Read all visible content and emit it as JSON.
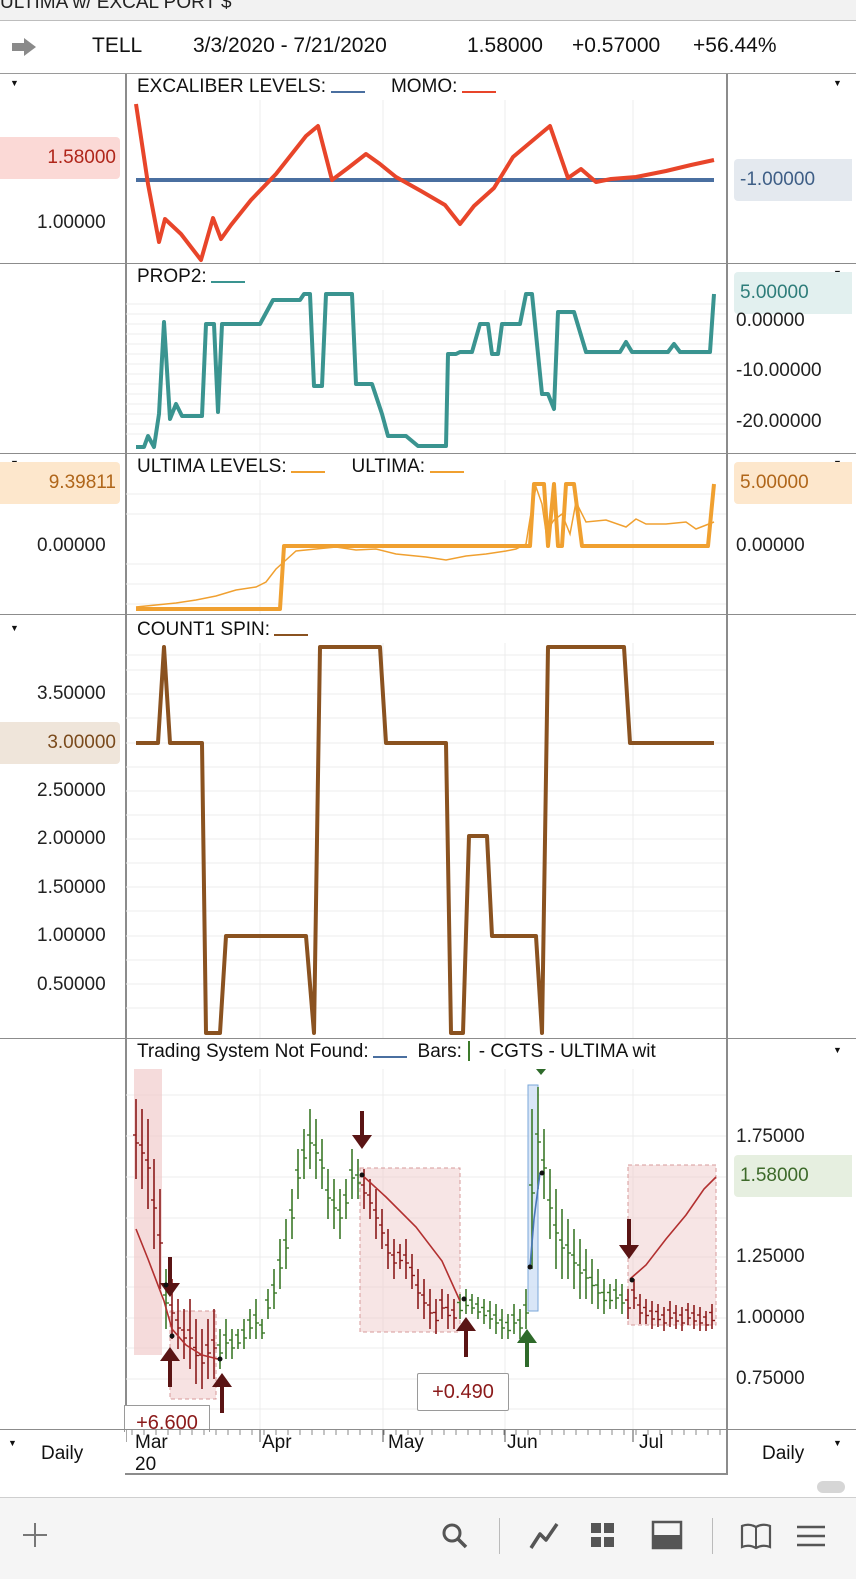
{
  "window": {
    "title_fragment": "ULTIMA w/ EXCAL PORT $"
  },
  "header": {
    "symbol": "TELL",
    "date_range": "3/3/2020 - 7/21/2020",
    "last": "1.58000",
    "change": "+0.57000",
    "change_pct": "+56.44%"
  },
  "colors": {
    "momo": "#e8452a",
    "excaliber": "#4a6fa0",
    "prop2": "#3a9490",
    "ultima": "#f0a030",
    "count1": "#8a5220",
    "bar_up": "#3c7a2a",
    "bar_down": "#8b1a1a",
    "trade_box": "#f1cfcf"
  },
  "panels": {
    "excaliber": {
      "label_1": "EXCALIBER LEVELS:",
      "label_2": "MOMO:",
      "left_value": "1.58000",
      "left_tick": "1.00000",
      "right_value": "-1.00000"
    },
    "prop2": {
      "label": "PROP2:",
      "right_value": "5.00000",
      "ticks": [
        "0.00000",
        "-10.00000",
        "-20.00000"
      ]
    },
    "ultima": {
      "label_1": "ULTIMA LEVELS:",
      "label_2": "ULTIMA:",
      "left_value": "9.39811",
      "left_tick": "0.00000",
      "right_value": "5.00000",
      "right_tick": "0.00000"
    },
    "count1": {
      "label": "COUNT1 SPIN:",
      "ticks": [
        "3.50000",
        "2.50000",
        "2.00000",
        "1.50000",
        "1.00000",
        "0.50000"
      ],
      "current_value": "3.00000"
    },
    "price": {
      "label_1": "Trading System Not Found:",
      "label_2": "Bars:",
      "label_3": "- CGTS - ULTIMA wit",
      "ticks": [
        "1.75000",
        "1.25000",
        "1.00000",
        "0.75000"
      ],
      "current_value": "1.58000",
      "annotation_1": "+0.490",
      "annotation_2": "+6.600"
    }
  },
  "xaxis": {
    "months": [
      "Mar",
      "Apr",
      "May",
      "Jun",
      "Jul"
    ],
    "year": "20",
    "interval_left": "Daily",
    "interval_right": "Daily"
  },
  "toolbar": {
    "icons": [
      "plus-icon",
      "search-icon",
      "line-chart-icon",
      "grid-icon",
      "layout-icon",
      "book-icon",
      "menu-icon"
    ]
  }
}
